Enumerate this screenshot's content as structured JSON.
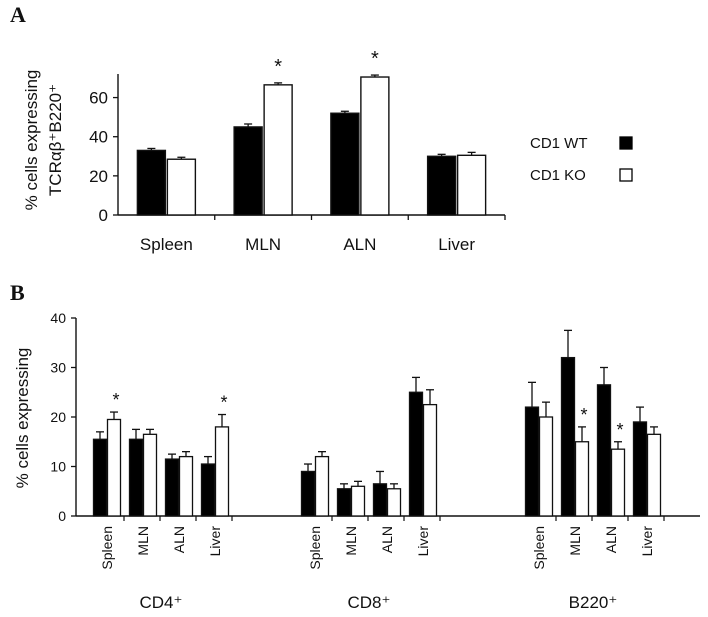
{
  "panels": {
    "a_label": "A",
    "b_label": "B"
  },
  "colors": {
    "wt": "#000000",
    "ko": "#ffffff",
    "axis": "#111111"
  },
  "chart_data": [
    {
      "type": "bar",
      "panel": "A",
      "ylabel_line1": "% cells expressing",
      "ylabel_line2": "TCRαβ⁺B220⁺",
      "ylim": [
        0,
        70
      ],
      "yticks": [
        0,
        20,
        40,
        60
      ],
      "categories": [
        "Spleen",
        "MLN",
        "ALN",
        "Liver"
      ],
      "series": [
        {
          "name": "CD1 WT",
          "values": [
            33,
            45,
            52,
            30
          ],
          "errors": [
            1,
            1.5,
            1,
            1
          ]
        },
        {
          "name": "CD1 KO",
          "values": [
            28.5,
            66.5,
            70.5,
            30.5
          ],
          "errors": [
            1,
            1,
            1,
            1.5
          ]
        }
      ],
      "significance": [
        "",
        "*",
        "*",
        ""
      ],
      "legend_placement": "right"
    },
    {
      "type": "bar",
      "panel": "B",
      "ylabel": "% cells expressing",
      "ylim": [
        0,
        40
      ],
      "yticks": [
        0,
        10,
        20,
        30,
        40
      ],
      "groups": [
        {
          "label": "CD4⁺",
          "categories": [
            "Spleen",
            "MLN",
            "ALN",
            "Liver"
          ],
          "wt": [
            15.5,
            15.5,
            11.5,
            10.5
          ],
          "wt_err": [
            1.5,
            2,
            1,
            1.5
          ],
          "ko": [
            19.5,
            16.5,
            12,
            18
          ],
          "ko_err": [
            1.5,
            1,
            1,
            2.5
          ],
          "sig": [
            "*",
            "",
            "",
            "*"
          ]
        },
        {
          "label": "CD8⁺",
          "categories": [
            "Spleen",
            "MLN",
            "ALN",
            "Liver"
          ],
          "wt": [
            9,
            5.5,
            6.5,
            25
          ],
          "wt_err": [
            1.5,
            1,
            2.5,
            3
          ],
          "ko": [
            12,
            6,
            5.5,
            22.5
          ],
          "ko_err": [
            1,
            1,
            1,
            3
          ],
          "sig": [
            "",
            "",
            "",
            ""
          ]
        },
        {
          "label": "B220⁺",
          "categories": [
            "Spleen",
            "MLN",
            "ALN",
            "Liver"
          ],
          "wt": [
            22,
            32,
            26.5,
            19
          ],
          "wt_err": [
            5,
            5.5,
            3.5,
            3
          ],
          "ko": [
            20,
            15,
            13.5,
            16.5
          ],
          "ko_err": [
            3,
            3,
            1.5,
            1.5
          ],
          "sig": [
            "",
            "*",
            "*",
            ""
          ]
        }
      ]
    }
  ]
}
